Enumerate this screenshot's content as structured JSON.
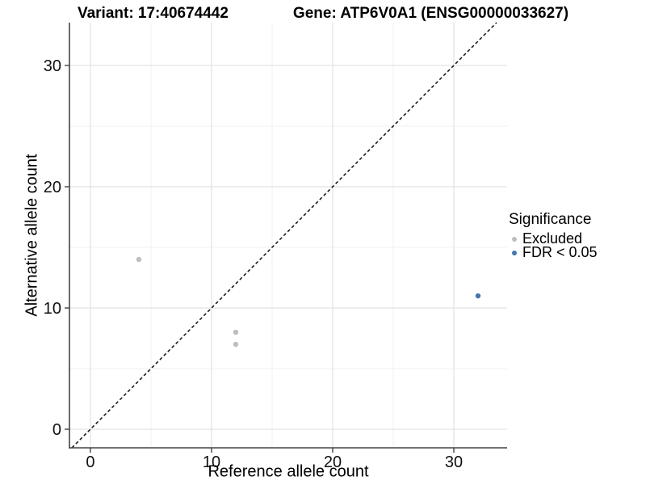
{
  "figure": {
    "title_left": "Variant: 17:40674442",
    "title_right": "Gene: ATP6V0A1 (ENSG00000033627)"
  },
  "chart_data": {
    "type": "scatter",
    "title": "Variant: 17:40674442   Gene: ATP6V0A1 (ENSG00000033627)",
    "xlabel": "Reference allele count",
    "ylabel": "Alternative allele count",
    "xlim": [
      -1.73,
      34.4
    ],
    "ylim": [
      -1.53,
      33.53
    ],
    "x_major_ticks": [
      0,
      10,
      20,
      30
    ],
    "y_major_ticks": [
      0,
      10,
      20,
      30
    ],
    "x_minor_ticks": [
      5,
      15,
      25
    ],
    "y_minor_ticks": [
      5,
      15,
      25
    ],
    "grid": "major+minor",
    "grid_major_color": "#E2E2E2",
    "grid_minor_color": "#F1F1F1",
    "axis_line_color": "#444444",
    "identity_line": {
      "equation": "y = x",
      "style": "dashed",
      "color": "#111111"
    },
    "legend": {
      "title": "Significance",
      "position": "right"
    },
    "series": [
      {
        "name": "Excluded",
        "color": "#BEBEBE",
        "points": [
          {
            "x": 4,
            "y": 14
          },
          {
            "x": 12,
            "y": 8
          },
          {
            "x": 12,
            "y": 7
          }
        ]
      },
      {
        "name": "FDR < 0.05",
        "color": "#4377AD",
        "points": [
          {
            "x": 32,
            "y": 11
          }
        ]
      }
    ]
  }
}
